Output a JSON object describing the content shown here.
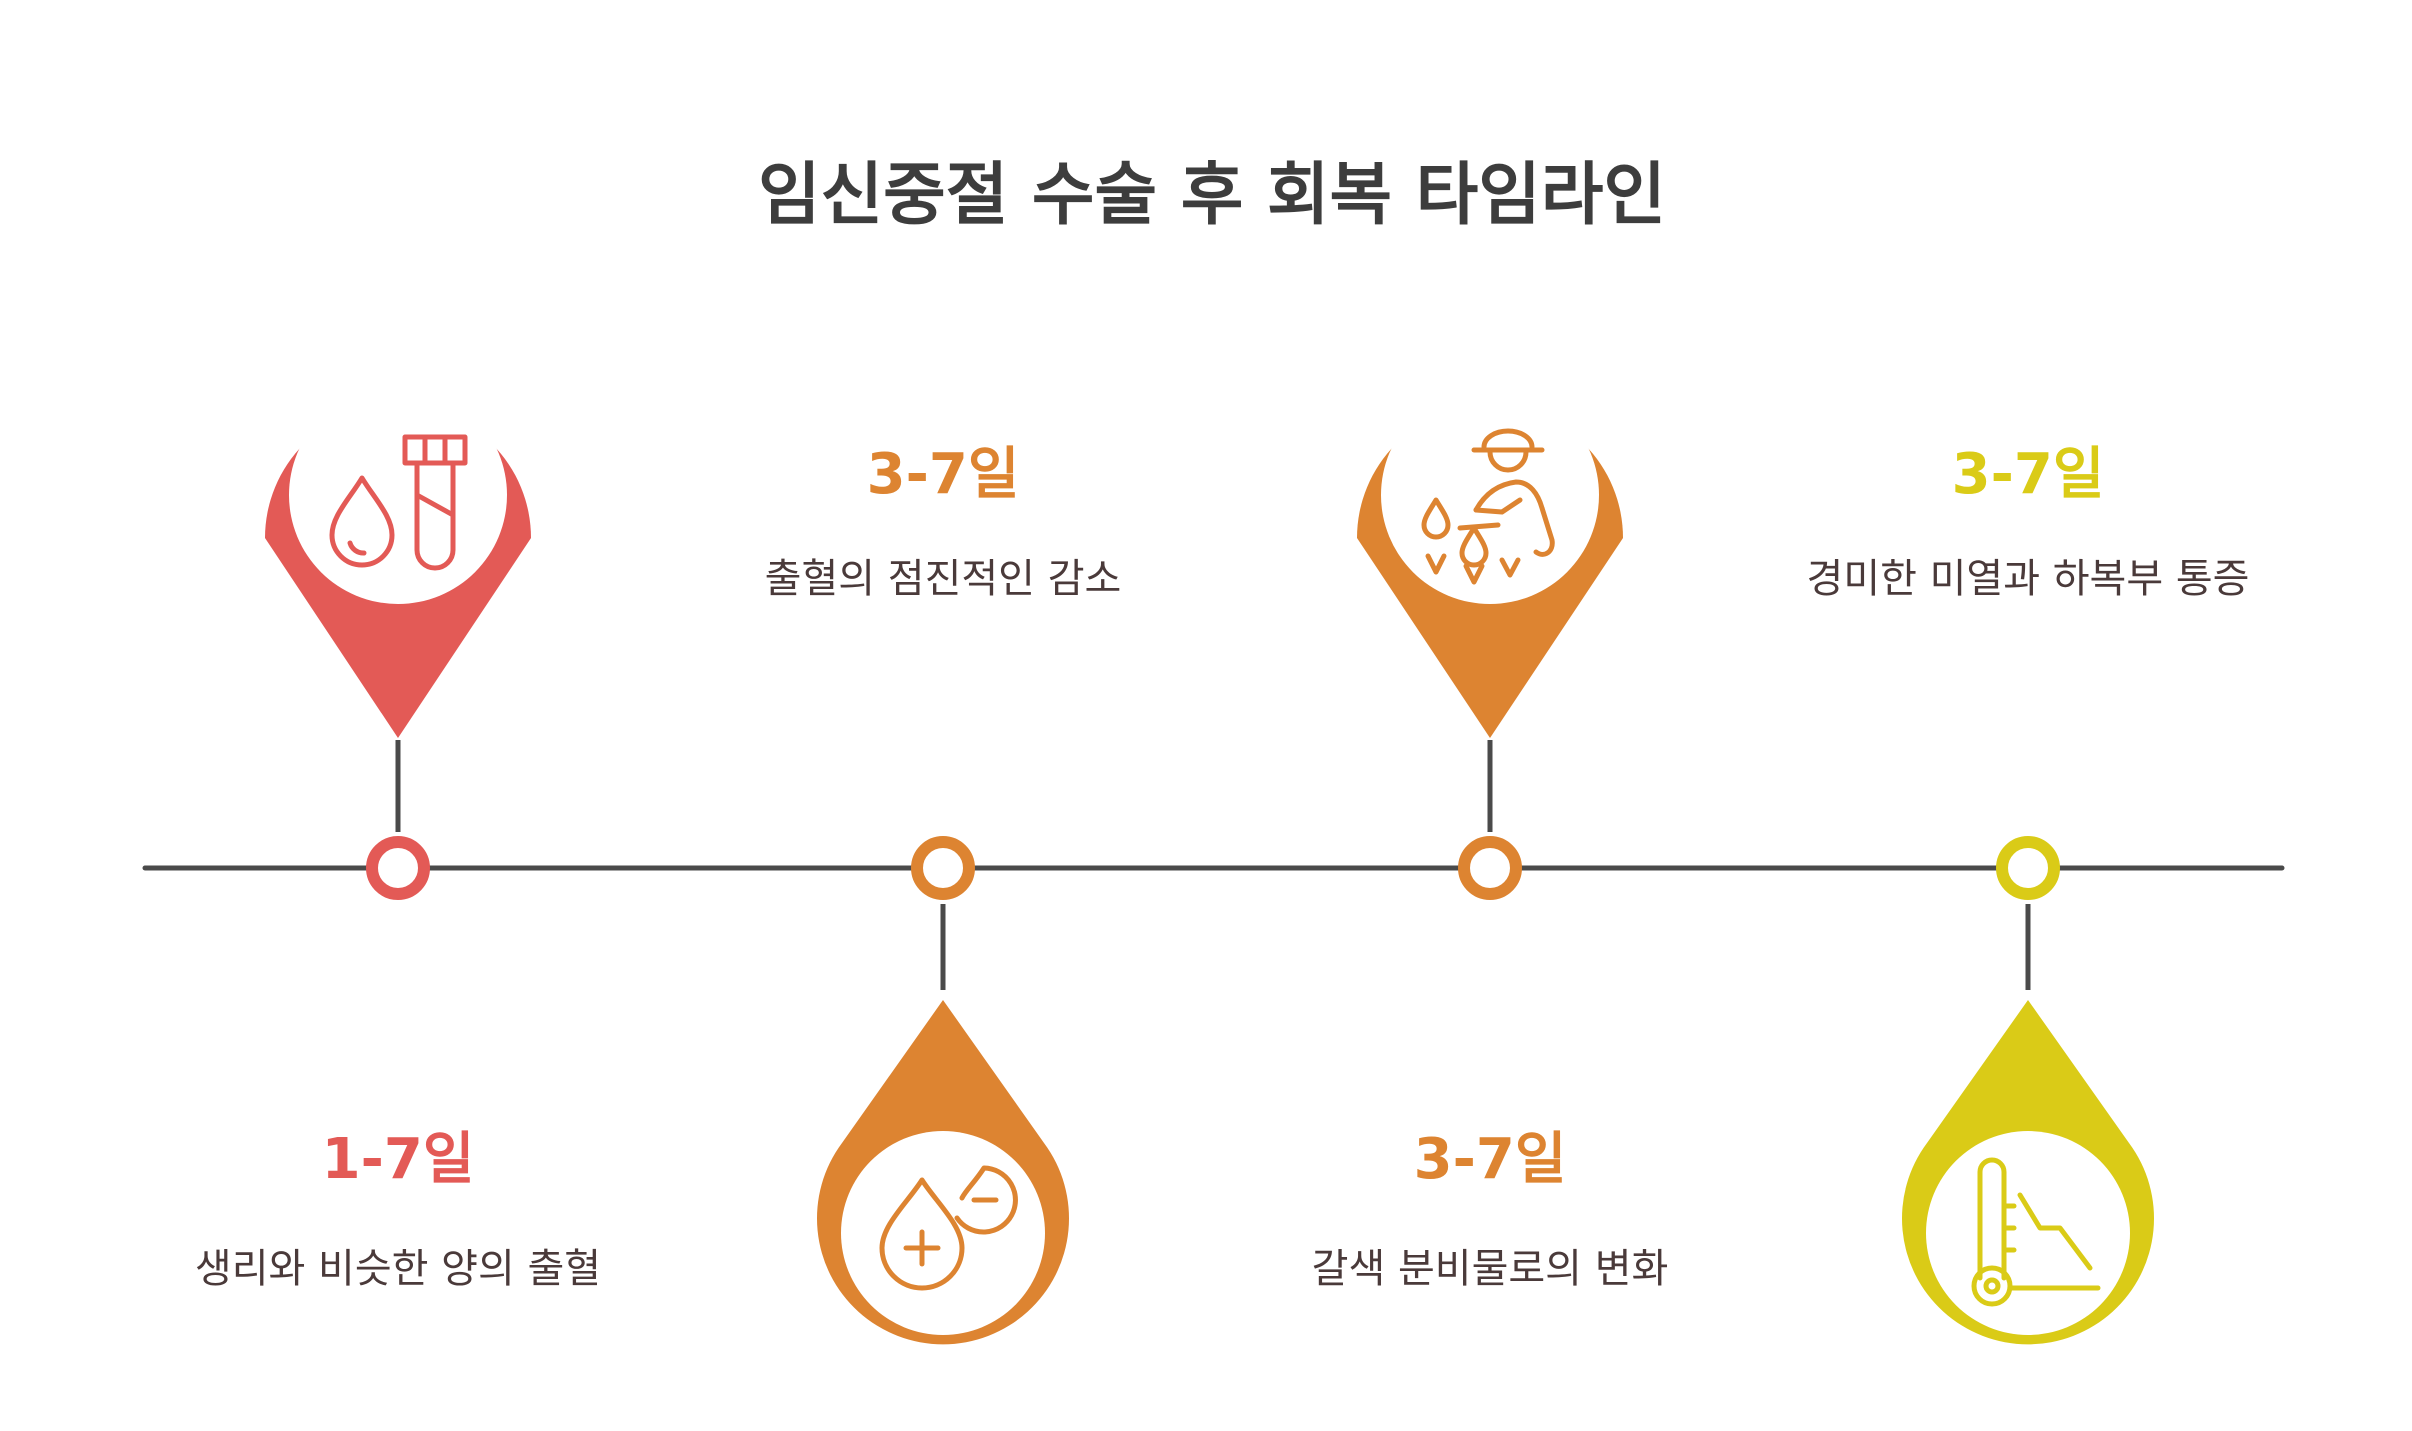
{
  "title": "임신중절 수술 후 회복 타임라인",
  "colors": {
    "red": "#e35a56",
    "orange": "#dd8431",
    "yellow": "#dacb17",
    "line": "#4a4a4a",
    "title": "#3d3d3d",
    "text": "#4a3a3a"
  },
  "milestones": [
    {
      "period": "1-7일",
      "description": "생리와 비슷한 양의 출혈",
      "color": "red",
      "icon": "blood-drop-test-tube-icon"
    },
    {
      "period": "3-7일",
      "description": "출혈의 점진적인 감소",
      "color": "orange",
      "icon": "blood-drops-plus-minus-icon"
    },
    {
      "period": "3-7일",
      "description": "갈색 분비물로의 변화",
      "color": "orange",
      "icon": "person-with-drops-icon"
    },
    {
      "period": "3-7일",
      "description": "경미한 미열과 하복부 통증",
      "color": "yellow",
      "icon": "thermometer-recline-icon"
    }
  ]
}
